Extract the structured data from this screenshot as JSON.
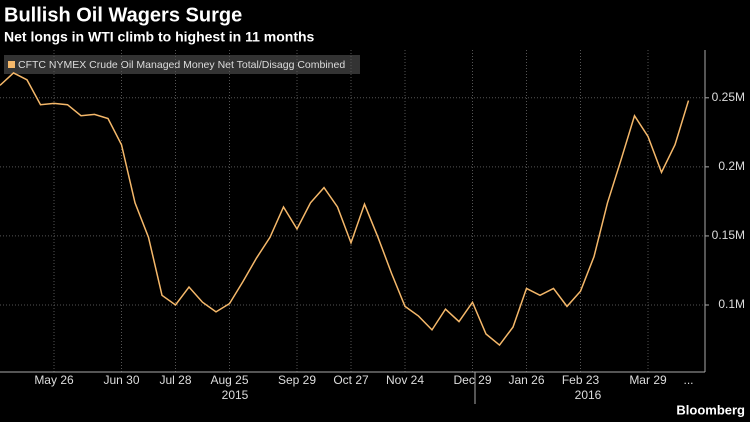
{
  "chart_data": {
    "type": "line",
    "title": "Bullish Oil Wagers Surge",
    "subtitle": "Net longs in WTI climb to highest in 11 months",
    "categories": [
      null,
      null,
      null,
      null,
      "May 26",
      null,
      null,
      null,
      null,
      "Jun 30",
      null,
      null,
      null,
      "Jul 28",
      null,
      null,
      null,
      "Aug 25",
      null,
      null,
      null,
      null,
      "Sep 29",
      null,
      null,
      null,
      "Oct 27",
      null,
      null,
      null,
      "Nov 24",
      null,
      null,
      null,
      null,
      "Dec 29",
      null,
      null,
      null,
      "Jan 26",
      null,
      null,
      null,
      "Feb 23",
      null,
      null,
      null,
      null,
      "Mar 29",
      null,
      null,
      "..."
    ],
    "years": [
      "2015",
      "2016"
    ],
    "series": [
      {
        "name": "CFTC NYMEX Crude Oil Managed Money Net Total/Disagg Combined",
        "color": "#f5b86a",
        "values": [
          0.259,
          0.268,
          0.263,
          0.245,
          0.246,
          0.245,
          0.237,
          0.238,
          0.235,
          0.216,
          0.174,
          0.149,
          0.107,
          0.1,
          0.113,
          0.102,
          0.095,
          0.101,
          0.117,
          0.134,
          0.149,
          0.171,
          0.155,
          0.174,
          0.185,
          0.171,
          0.145,
          0.173,
          0.149,
          0.123,
          0.099,
          0.092,
          0.082,
          0.097,
          0.088,
          0.102,
          0.079,
          0.071,
          0.084,
          0.112,
          0.107,
          0.112,
          0.099,
          0.11,
          0.135,
          0.174,
          0.205,
          0.237,
          0.222,
          0.196,
          0.216,
          0.248
        ]
      }
    ],
    "ylim": [
      0.0515,
      0.2846
    ],
    "yticks": [
      {
        "value": 0.1,
        "label": "0.1M"
      },
      {
        "value": 0.15,
        "label": "0.15M"
      },
      {
        "value": 0.2,
        "label": "0.2M"
      },
      {
        "value": 0.25,
        "label": "0.25M"
      }
    ],
    "grid": true,
    "source": "Bloomberg"
  }
}
